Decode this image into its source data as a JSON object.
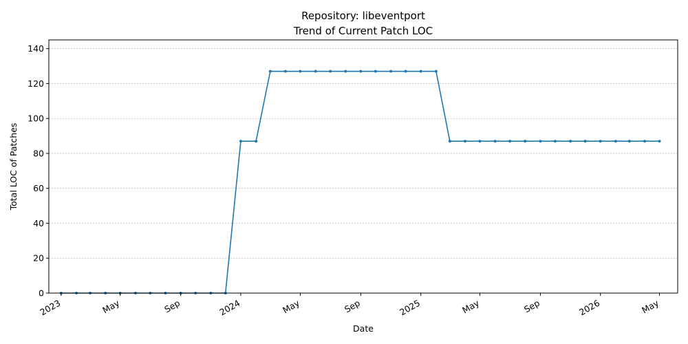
{
  "chart_data": {
    "type": "line",
    "title": "Repository: libeventport",
    "subtitle": "Trend of Current Patch LOC",
    "xlabel": "Date",
    "ylabel": "Total LOC of Patches",
    "ylim": [
      0,
      145
    ],
    "yticks": [
      0,
      20,
      40,
      60,
      80,
      100,
      120,
      140
    ],
    "xlim": [
      "2022-12-07",
      "2026-06-07"
    ],
    "xticks": [
      {
        "date": "2023-01-01",
        "label": "2023"
      },
      {
        "date": "2023-05-01",
        "label": "May"
      },
      {
        "date": "2023-09-01",
        "label": "Sep"
      },
      {
        "date": "2024-01-01",
        "label": "2024"
      },
      {
        "date": "2024-05-01",
        "label": "May"
      },
      {
        "date": "2024-09-01",
        "label": "Sep"
      },
      {
        "date": "2025-01-01",
        "label": "2025"
      },
      {
        "date": "2025-05-01",
        "label": "May"
      },
      {
        "date": "2025-09-01",
        "label": "Sep"
      },
      {
        "date": "2026-01-01",
        "label": "2026"
      },
      {
        "date": "2026-05-01",
        "label": "May"
      }
    ],
    "grid": "y-major-dashed",
    "color": "#1f77b4",
    "series": [
      {
        "x": [
          "2023-01-01",
          "2023-02-01",
          "2023-03-01",
          "2023-04-01",
          "2023-05-01",
          "2023-06-01",
          "2023-07-01",
          "2023-08-01",
          "2023-09-01",
          "2023-10-01",
          "2023-11-01",
          "2023-12-01",
          "2024-01-01",
          "2024-02-01",
          "2024-03-01",
          "2024-04-01",
          "2024-05-01",
          "2024-06-01",
          "2024-07-01",
          "2024-08-01",
          "2024-09-01",
          "2024-10-01",
          "2024-11-01",
          "2024-12-01",
          "2025-01-01",
          "2025-02-01",
          "2025-03-01",
          "2025-04-01",
          "2025-05-01",
          "2025-06-01",
          "2025-07-01",
          "2025-08-01",
          "2025-09-01",
          "2025-10-01",
          "2025-11-01",
          "2025-12-01",
          "2026-01-01",
          "2026-02-01",
          "2026-03-01",
          "2026-04-01",
          "2026-05-01"
        ],
        "values": [
          0,
          0,
          0,
          0,
          0,
          0,
          0,
          0,
          0,
          0,
          0,
          0,
          87,
          87,
          127,
          127,
          127,
          127,
          127,
          127,
          127,
          127,
          127,
          127,
          127,
          127,
          87,
          87,
          87,
          87,
          87,
          87,
          87,
          87,
          87,
          87,
          87,
          87,
          87,
          87,
          87
        ]
      }
    ]
  }
}
